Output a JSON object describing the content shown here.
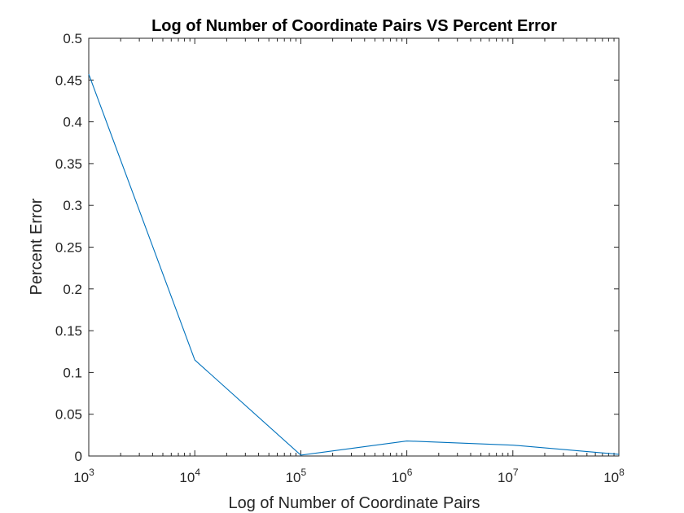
{
  "chart_data": {
    "type": "line",
    "title": "Log of Number of Coordinate Pairs VS Percent Error",
    "xlabel": "Log of Number of Coordinate Pairs",
    "ylabel": "Percent Error",
    "xscale": "log",
    "xlim": [
      1000,
      100000000
    ],
    "ylim": [
      0,
      0.5
    ],
    "grid": false,
    "box": true,
    "xticks": [
      {
        "value": 1000,
        "base": "10",
        "exp": "3"
      },
      {
        "value": 10000,
        "base": "10",
        "exp": "4"
      },
      {
        "value": 100000,
        "base": "10",
        "exp": "5"
      },
      {
        "value": 1000000,
        "base": "10",
        "exp": "6"
      },
      {
        "value": 10000000,
        "base": "10",
        "exp": "7"
      },
      {
        "value": 100000000,
        "base": "10",
        "exp": "8"
      }
    ],
    "yticks": [
      "0",
      "0.05",
      "0.1",
      "0.15",
      "0.2",
      "0.25",
      "0.3",
      "0.35",
      "0.4",
      "0.45",
      "0.5"
    ],
    "series": [
      {
        "color": "#0072BD",
        "x": [
          1000,
          10000,
          100000,
          1000000,
          10000000,
          100000000
        ],
        "y": [
          0.457,
          0.115,
          0.001,
          0.018,
          0.013,
          0.002
        ]
      }
    ]
  }
}
